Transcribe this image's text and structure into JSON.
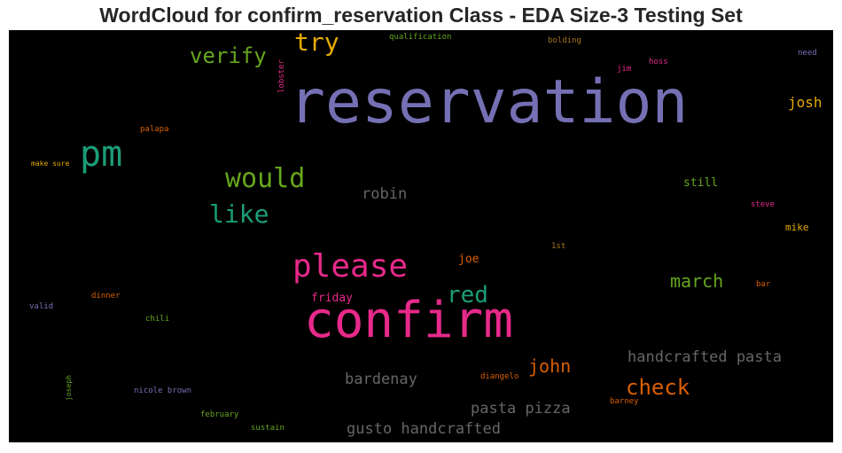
{
  "title": "WordCloud for confirm_reservation Class - EDA Size-3 Testing Set",
  "chart_data": {
    "type": "wordcloud",
    "background": "#000000",
    "colormap": "Dark2",
    "words": [
      {
        "text": "reservation",
        "color": "#7570b3"
      },
      {
        "text": "confirm",
        "color": "#e7298a"
      },
      {
        "text": "please",
        "color": "#e7298a"
      },
      {
        "text": "pm",
        "color": "#1b9e77"
      },
      {
        "text": "would",
        "color": "#66a61e"
      },
      {
        "text": "like",
        "color": "#1b9e77"
      },
      {
        "text": "try",
        "color": "#e6ab02"
      },
      {
        "text": "verify",
        "color": "#66a61e"
      },
      {
        "text": "red",
        "color": "#1b9e77"
      },
      {
        "text": "check",
        "color": "#d95f02"
      },
      {
        "text": "march",
        "color": "#66a61e"
      },
      {
        "text": "john",
        "color": "#d95f02"
      },
      {
        "text": "robin",
        "color": "#666666"
      },
      {
        "text": "handcrafted pasta",
        "color": "#666666"
      },
      {
        "text": "pasta pizza",
        "color": "#666666"
      },
      {
        "text": "gusto handcrafted",
        "color": "#666666"
      },
      {
        "text": "bardenay",
        "color": "#666666"
      },
      {
        "text": "josh",
        "color": "#e6ab02"
      },
      {
        "text": "still",
        "color": "#66a61e"
      },
      {
        "text": "friday",
        "color": "#e7298a"
      },
      {
        "text": "joe",
        "color": "#d95f02"
      },
      {
        "text": "mike",
        "color": "#e6ab02"
      },
      {
        "text": "steve",
        "color": "#e7298a"
      },
      {
        "text": "bar",
        "color": "#d95f02"
      },
      {
        "text": "1st",
        "color": "#a6761d"
      },
      {
        "text": "palapa",
        "color": "#d95f02"
      },
      {
        "text": "make sure",
        "color": "#e6ab02"
      },
      {
        "text": "dinner",
        "color": "#d95f02"
      },
      {
        "text": "valid",
        "color": "#7570b3"
      },
      {
        "text": "chili",
        "color": "#66a61e"
      },
      {
        "text": "joseph",
        "color": "#66a61e"
      },
      {
        "text": "nicole brown",
        "color": "#7570b3"
      },
      {
        "text": "february",
        "color": "#66a61e"
      },
      {
        "text": "sustain",
        "color": "#66a61e"
      },
      {
        "text": "diangelo",
        "color": "#d95f02"
      },
      {
        "text": "barney",
        "color": "#d95f02"
      },
      {
        "text": "qualification",
        "color": "#66a61e"
      },
      {
        "text": "bolding",
        "color": "#a6761d"
      },
      {
        "text": "lobster",
        "color": "#e7298a"
      },
      {
        "text": "jim",
        "color": "#e7298a"
      },
      {
        "text": "hoss",
        "color": "#e7298a"
      },
      {
        "text": "need",
        "color": "#7570b3"
      }
    ]
  }
}
